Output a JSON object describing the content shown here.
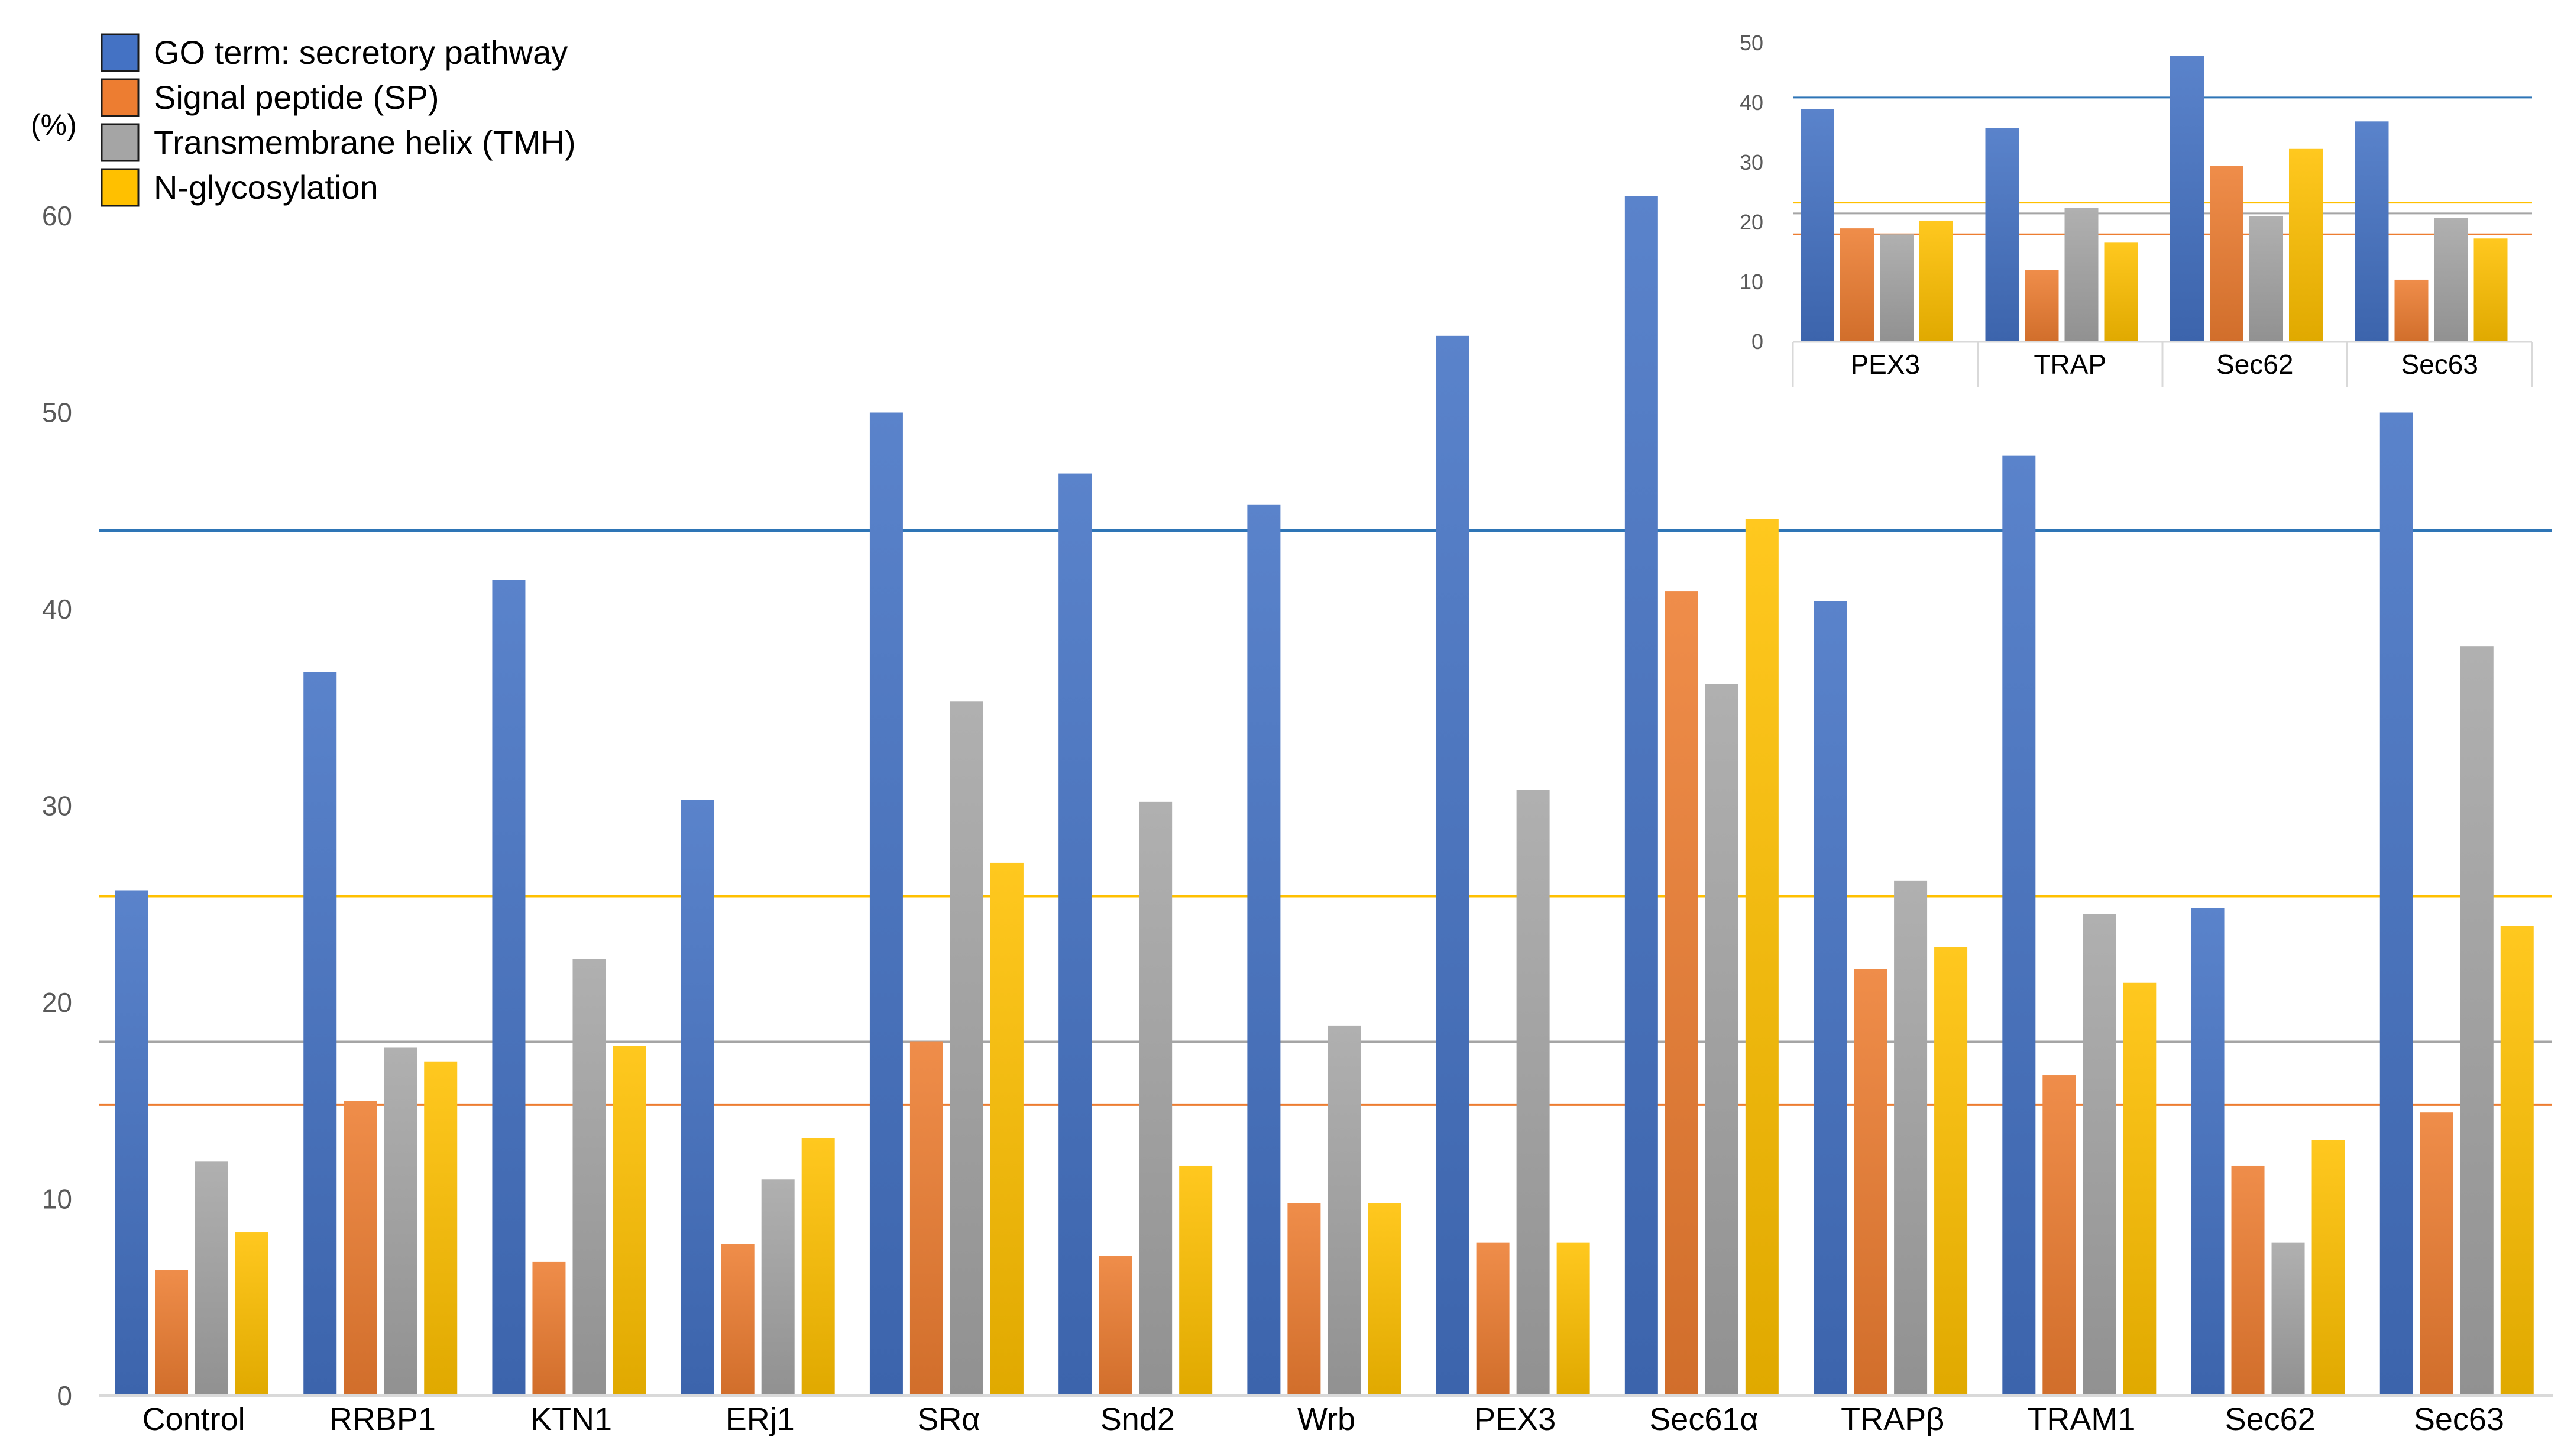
{
  "colors": {
    "go": "#4472C4",
    "sp": "#ED7D31",
    "tmh": "#A5A5A5",
    "ng": "#FFC000",
    "ref_go": "#2E75B6",
    "axis": "#D9D9D9",
    "tick_text": "#595959"
  },
  "chart_data": [
    {
      "type": "bar",
      "title": "",
      "ylabel": "(%)",
      "xlabel": "",
      "ylim": [
        0,
        60
      ],
      "yticks": [
        0,
        10,
        20,
        30,
        40,
        50,
        60
      ],
      "grid": false,
      "legend_position": "top-left",
      "categories": [
        "Control",
        "RRBP1",
        "KTN1",
        "ERj1",
        "SRα",
        "Snd2",
        "Wrb",
        "PEX3",
        "Sec61α",
        "TRAPβ",
        "TRAM1",
        "Sec62",
        "Sec63"
      ],
      "series": [
        {
          "name": "GO term: secretory pathway",
          "color_key": "go",
          "values": [
            25.7,
            36.8,
            41.5,
            30.3,
            50.0,
            46.9,
            45.3,
            53.9,
            61.0,
            40.4,
            47.8,
            24.8,
            50.0
          ]
        },
        {
          "name": "Signal peptide (SP)",
          "color_key": "sp",
          "values": [
            6.4,
            15.0,
            6.8,
            7.7,
            18.0,
            7.1,
            9.8,
            7.8,
            40.9,
            21.7,
            16.3,
            11.7,
            14.4
          ]
        },
        {
          "name": "Transmembrane helix (TMH)",
          "color_key": "tmh",
          "values": [
            11.9,
            17.7,
            22.2,
            11.0,
            35.3,
            30.2,
            18.8,
            30.8,
            36.2,
            26.2,
            24.5,
            7.8,
            38.1
          ]
        },
        {
          "name": "N-glycosylation",
          "color_key": "ng",
          "values": [
            8.3,
            17.0,
            17.8,
            13.1,
            27.1,
            11.7,
            9.8,
            7.8,
            44.6,
            22.8,
            21.0,
            13.0,
            23.9
          ]
        }
      ],
      "reference_lines": [
        {
          "series": "GO term: secretory pathway",
          "value": 44.0,
          "color_key": "ref_go"
        },
        {
          "series": "N-glycosylation",
          "value": 25.4,
          "color_key": "ng"
        },
        {
          "series": "Transmembrane helix (TMH)",
          "value": 18.0,
          "color_key": "tmh"
        },
        {
          "series": "Signal peptide (SP)",
          "value": 14.8,
          "color_key": "sp"
        }
      ]
    },
    {
      "type": "bar",
      "title": "",
      "ylim": [
        0,
        50
      ],
      "yticks": [
        0,
        10,
        20,
        30,
        40,
        50
      ],
      "grid": false,
      "placement": "top-right inset",
      "categories": [
        "PEX3",
        "TRAP",
        "Sec62",
        "Sec63"
      ],
      "series": [
        {
          "name": "GO term: secretory pathway",
          "color_key": "go",
          "values": [
            39.0,
            35.8,
            47.9,
            36.9
          ]
        },
        {
          "name": "Signal peptide (SP)",
          "color_key": "sp",
          "values": [
            19.0,
            12.0,
            29.5,
            10.4
          ]
        },
        {
          "name": "Transmembrane helix (TMH)",
          "color_key": "tmh",
          "values": [
            18.0,
            22.4,
            21.0,
            20.7
          ]
        },
        {
          "name": "N-glycosylation",
          "color_key": "ng",
          "values": [
            20.3,
            16.6,
            32.3,
            17.3
          ]
        }
      ],
      "reference_lines": [
        {
          "series": "GO term: secretory pathway",
          "value": 40.9,
          "color_key": "ref_go"
        },
        {
          "series": "N-glycosylation",
          "value": 23.3,
          "color_key": "ng"
        },
        {
          "series": "Transmembrane helix (TMH)",
          "value": 21.5,
          "color_key": "tmh"
        },
        {
          "series": "Signal peptide (SP)",
          "value": 18.0,
          "color_key": "sp"
        }
      ]
    }
  ]
}
